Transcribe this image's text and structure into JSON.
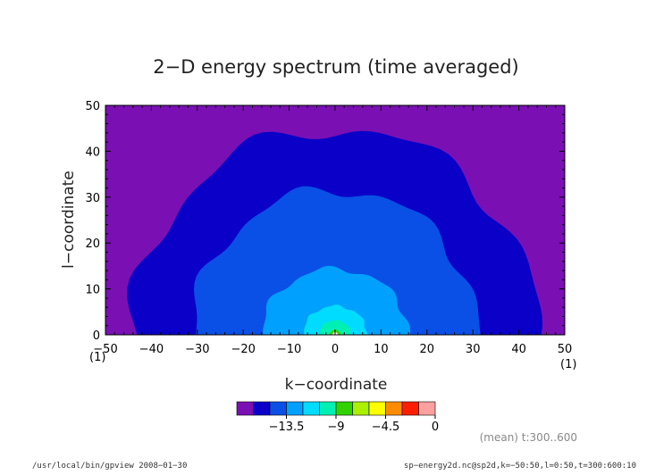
{
  "chart_data": {
    "type": "heatmap",
    "title": "2−D energy spectrum (time averaged)",
    "xlabel": "k−coordinate",
    "ylabel": "l−coordinate",
    "xlim": [
      -50,
      50
    ],
    "ylim": [
      0,
      50
    ],
    "xticks": [
      -50,
      -40,
      -30,
      -20,
      -10,
      0,
      10,
      20,
      30,
      40,
      50
    ],
    "xtick_labels": [
      "−50",
      "−40",
      "−30",
      "−20",
      "−10",
      "0",
      "10",
      "20",
      "30",
      "40",
      "50"
    ],
    "yticks": [
      0,
      10,
      20,
      30,
      40,
      50
    ],
    "ytick_labels": [
      "0",
      "10",
      "20",
      "30",
      "40",
      "50"
    ],
    "x_unit_left": "(1)",
    "x_unit_right": "(1)",
    "colorbar": {
      "boundaries": [
        -18,
        -16.5,
        -15,
        -13.5,
        -12,
        -10.5,
        -9,
        -7.5,
        -6,
        -4.5,
        -3,
        -1.5,
        0
      ],
      "colors": [
        "#7a10b4",
        "#0a00c8",
        "#0a50e6",
        "#00a0ff",
        "#00dcff",
        "#00f0b4",
        "#32d200",
        "#aaf000",
        "#ffff00",
        "#ff8c00",
        "#ff1e00",
        "#ffa0a0"
      ],
      "tick_values": [
        -13.5,
        -9,
        -4.5,
        0
      ],
      "tick_labels": [
        "−13.5",
        "−9",
        "−4.5",
        "0"
      ]
    },
    "contour_regions": [
      {
        "level": -16.5,
        "approx_radius": 44
      },
      {
        "level": -15,
        "approx_radius": 31
      },
      {
        "level": -13.5,
        "approx_radius": 16
      },
      {
        "level": -12,
        "approx_radius": 7
      },
      {
        "level": -10.5,
        "approx_radius": 3.5
      },
      {
        "level": -9,
        "approx_radius": 1.2
      },
      {
        "level": -4.5,
        "approx_radius": 0.6
      }
    ],
    "grid": false
  },
  "annotation": "(mean) t:300..600",
  "footer": {
    "left": "/usr/local/bin/gpview   2008−01−30",
    "right": "sp−energy2d.nc@sp2d,k=−50:50,l=0:50,t=300:600:10"
  }
}
